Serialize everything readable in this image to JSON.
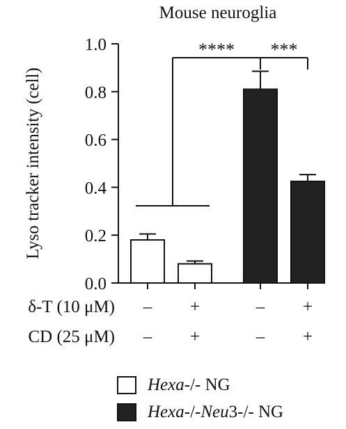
{
  "chart_data": {
    "type": "bar",
    "title": "Mouse neuroglia",
    "ylabel": "Lyso tracker intensity (cell)",
    "xlabel": "",
    "ylim": [
      0.0,
      1.0
    ],
    "yticks": [
      "0.0",
      "0.2",
      "0.4",
      "0.6",
      "0.8",
      "1.0"
    ],
    "yticks_values": [
      0.0,
      0.2,
      0.4,
      0.6,
      0.8,
      1.0
    ],
    "grid": false,
    "bars": [
      {
        "group": "Hexa-/- NG",
        "fill": "#ffffff",
        "value": 0.18,
        "error": 0.025,
        "dT": "–",
        "CD": "–"
      },
      {
        "group": "Hexa-/- NG",
        "fill": "#ffffff",
        "value": 0.08,
        "error": 0.012,
        "dT": "+",
        "CD": "+"
      },
      {
        "group": "Hexa-/-Neu3-/- NG",
        "fill": "#222222",
        "value": 0.81,
        "error": 0.075,
        "dT": "–",
        "CD": "–"
      },
      {
        "group": "Hexa-/-Neu3-/- NG",
        "fill": "#222222",
        "value": 0.425,
        "error": 0.028,
        "dT": "+",
        "CD": "+"
      }
    ],
    "conditions": [
      {
        "label": "δ-T (10 μM)"
      },
      {
        "label": "CD (25 μM)"
      }
    ],
    "significance": [
      {
        "text": "****"
      },
      {
        "text": "***"
      }
    ],
    "legend": [
      {
        "label_italic": "Hexa",
        "label_rest": "-/- NG",
        "fill": "#ffffff"
      },
      {
        "label_italic": "Hexa",
        "label_mid": "-/-",
        "label_italic2": "Neu",
        "label_rest": "3-/- NG",
        "fill": "#222222"
      }
    ],
    "legend_position": "bottom"
  }
}
